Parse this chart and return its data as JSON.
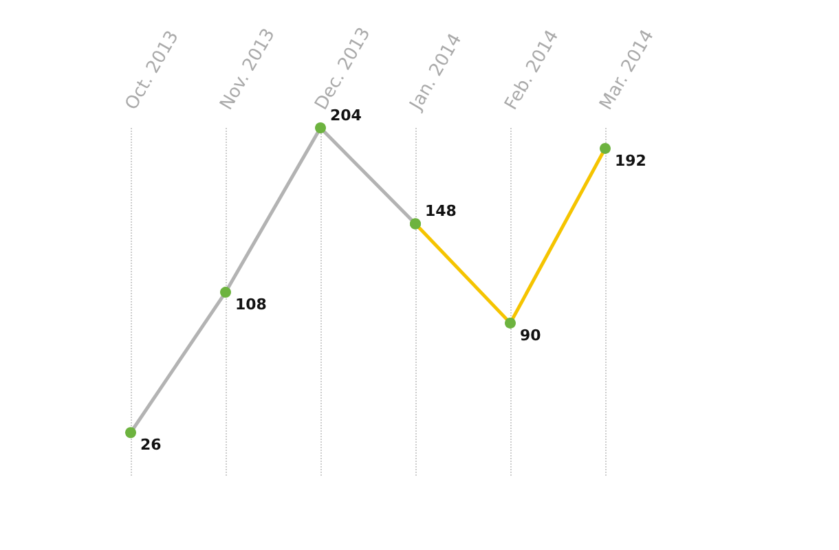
{
  "chart_data": {
    "type": "line",
    "categories": [
      "Oct. 2013",
      "Nov. 2013",
      "Dec. 2013",
      "Jan. 2014",
      "Feb. 2014",
      "Mar. 2014"
    ],
    "series": [
      {
        "color": "#b3b3b3",
        "values": [
          26,
          108,
          204,
          148,
          null,
          null
        ],
        "value_labels": [
          "26",
          "108",
          "204",
          "148",
          null,
          null
        ]
      },
      {
        "color": "#f5c400",
        "values": [
          null,
          null,
          null,
          148,
          90,
          192
        ],
        "value_labels": [
          null,
          null,
          null,
          null,
          "90",
          "192"
        ]
      }
    ],
    "marker": "circle",
    "line_style": "solid",
    "grid": "x"
  }
}
